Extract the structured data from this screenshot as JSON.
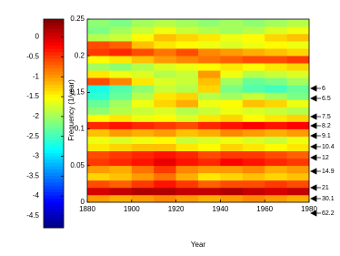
{
  "chart_data": {
    "type": "heatmap",
    "xlabel": "Year",
    "ylabel": "Frequency (1/year)",
    "x_bins": [
      1880,
      1890,
      1900,
      1910,
      1920,
      1930,
      1940,
      1950,
      1960,
      1970,
      1980
    ],
    "y_bins": [
      0,
      0.01,
      0.02,
      0.03,
      0.04,
      0.05,
      0.06,
      0.07,
      0.08,
      0.09,
      0.1,
      0.11,
      0.12,
      0.13,
      0.14,
      0.15,
      0.16,
      0.17,
      0.18,
      0.19,
      0.2,
      0.21,
      0.22,
      0.23,
      0.24,
      0.25
    ],
    "z": [
      [
        -1.0,
        -1.1,
        -1.0,
        -0.9,
        -1.0,
        -1.1,
        -1.0,
        -0.9,
        -1.0,
        -1.1
      ],
      [
        0.0,
        0.1,
        0.2,
        0.2,
        0.1,
        0.1,
        0.2,
        0.1,
        0.0,
        0.1
      ],
      [
        -0.6,
        -0.7,
        -0.5,
        -0.3,
        -0.5,
        -0.7,
        -0.6,
        -0.6,
        -0.5,
        -0.6
      ],
      [
        -1.3,
        -1.2,
        -1.0,
        -0.8,
        -1.1,
        -1.4,
        -1.3,
        -1.2,
        -1.3,
        -1.2
      ],
      [
        -1.0,
        -1.1,
        -0.8,
        -0.5,
        -0.9,
        -1.0,
        -1.0,
        -0.9,
        -1.1,
        -1.0
      ],
      [
        -0.5,
        -0.4,
        -0.3,
        -0.1,
        -0.3,
        -0.4,
        -0.2,
        -0.3,
        -0.4,
        -0.5
      ],
      [
        -0.6,
        -0.5,
        -0.4,
        -0.3,
        -0.4,
        -0.6,
        -0.5,
        -0.5,
        -0.6,
        -0.7
      ],
      [
        -1.4,
        -1.3,
        -1.2,
        -1.2,
        -1.4,
        -1.5,
        -1.3,
        -1.4,
        -1.5,
        -1.4
      ],
      [
        -1.6,
        -1.7,
        -1.6,
        -1.5,
        -1.8,
        -1.7,
        -1.6,
        -1.7,
        -1.8,
        -1.6
      ],
      [
        -1.2,
        -1.0,
        -1.1,
        -1.0,
        -1.2,
        -1.1,
        -0.9,
        -1.0,
        -1.1,
        -1.0
      ],
      [
        -0.4,
        -0.3,
        -0.4,
        -0.5,
        -0.6,
        -0.4,
        -0.3,
        -0.2,
        -0.3,
        -0.2
      ],
      [
        -1.5,
        -1.4,
        -1.6,
        -1.5,
        -1.7,
        -1.4,
        -1.3,
        -1.5,
        -1.4,
        -1.3
      ],
      [
        -2.1,
        -1.9,
        -1.8,
        -1.7,
        -1.9,
        -1.8,
        -1.6,
        -1.7,
        -1.8,
        -1.9
      ],
      [
        -2.3,
        -2.0,
        -1.6,
        -1.3,
        -1.1,
        -1.6,
        -1.5,
        -1.2,
        -1.3,
        -1.6
      ],
      [
        -2.6,
        -2.3,
        -1.9,
        -1.4,
        -1.3,
        -1.9,
        -2.0,
        -1.8,
        -2.0,
        -2.2
      ],
      [
        -2.7,
        -2.4,
        -2.1,
        -1.8,
        -1.9,
        -1.3,
        -2.2,
        -2.4,
        -2.5,
        -2.3
      ],
      [
        -0.6,
        -0.9,
        -1.4,
        -1.7,
        -1.8,
        -1.2,
        -2.0,
        -2.3,
        -2.2,
        -2.0
      ],
      [
        -1.4,
        -1.6,
        -1.7,
        -1.9,
        -1.8,
        -1.0,
        -1.6,
        -1.9,
        -1.8,
        -1.7
      ],
      [
        -2.0,
        -2.1,
        -1.9,
        -1.7,
        -1.6,
        -1.5,
        -1.4,
        -1.5,
        -1.4,
        -1.3
      ],
      [
        -1.5,
        -1.4,
        -1.2,
        -1.0,
        -0.9,
        -0.8,
        -0.7,
        -0.6,
        -0.6,
        -0.5
      ],
      [
        -0.5,
        -0.4,
        -0.6,
        -0.8,
        -0.6,
        -0.9,
        -1.0,
        -1.1,
        -1.2,
        -1.3
      ],
      [
        -0.6,
        -0.7,
        -1.2,
        -1.4,
        -1.5,
        -1.6,
        -1.7,
        -1.6,
        -1.5,
        -1.6
      ],
      [
        -1.9,
        -1.8,
        -1.5,
        -1.2,
        -1.3,
        -1.4,
        -1.6,
        -1.5,
        -1.3,
        -1.2
      ],
      [
        -2.2,
        -2.0,
        -1.8,
        -1.6,
        -1.8,
        -1.9,
        -2.0,
        -1.9,
        -1.7,
        -1.6
      ],
      [
        -2.1,
        -2.2,
        -2.0,
        -1.9,
        -2.0,
        -2.1,
        -2.0,
        -2.1,
        -2.0,
        -1.9
      ]
    ],
    "xlim": [
      1880,
      1980
    ],
    "xticks": [
      1880,
      1900,
      1920,
      1940,
      1960,
      1980
    ],
    "ylim": [
      0,
      0.25
    ],
    "yticks": [
      0,
      0.05,
      0.1,
      0.15,
      0.2,
      0.25
    ],
    "colormap": "jet",
    "clim": [
      -4.8,
      0.45
    ],
    "cticks": [
      0,
      -0.5,
      -1,
      -1.5,
      -2,
      -2.5,
      -3,
      -3.5,
      -4,
      -4.5
    ],
    "period_labels": [
      "6",
      "6.5",
      "7.5",
      "8.2",
      "9.1",
      "10.4",
      "12",
      "14.9",
      "21",
      "30.1",
      "62.2"
    ]
  }
}
